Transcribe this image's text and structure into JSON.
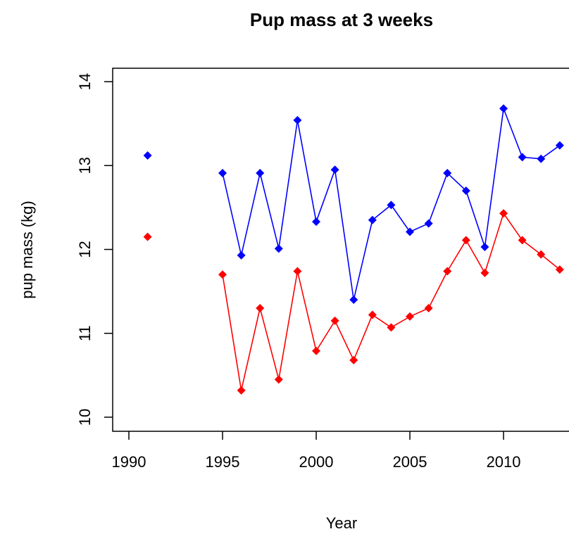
{
  "chart_data": {
    "type": "line",
    "title": "Pup mass at 3 weeks",
    "x_label": "Year",
    "y_label": "pup mass (kg)",
    "x": [
      1991,
      1992,
      1993,
      1994,
      1995,
      1996,
      1997,
      1998,
      1999,
      2000,
      2001,
      2002,
      2003,
      2004,
      2005,
      2006,
      2007,
      2008,
      2009,
      2010,
      2011,
      2012,
      2013
    ],
    "series": [
      {
        "color": "#0000ff",
        "values": [
          13.12,
          null,
          null,
          null,
          12.91,
          11.93,
          12.91,
          12.01,
          13.54,
          12.33,
          12.95,
          11.4,
          12.35,
          12.53,
          12.21,
          12.31,
          12.91,
          12.7,
          12.03,
          13.68,
          13.1,
          13.08,
          13.24
        ]
      },
      {
        "color": "#ff0000",
        "values": [
          12.15,
          null,
          null,
          null,
          11.7,
          10.32,
          11.3,
          10.45,
          11.74,
          10.79,
          11.15,
          10.68,
          11.22,
          11.07,
          11.2,
          11.3,
          11.74,
          12.11,
          11.72,
          12.43,
          12.11,
          11.94,
          11.76
        ]
      }
    ],
    "xlim": [
      1989.135,
      2014.96
    ],
    "xticks": [
      1990,
      1995,
      2000,
      2005,
      2010
    ],
    "ylim": [
      9.832,
      14.16
    ],
    "yticks": [
      10,
      11,
      12,
      13,
      14
    ]
  }
}
